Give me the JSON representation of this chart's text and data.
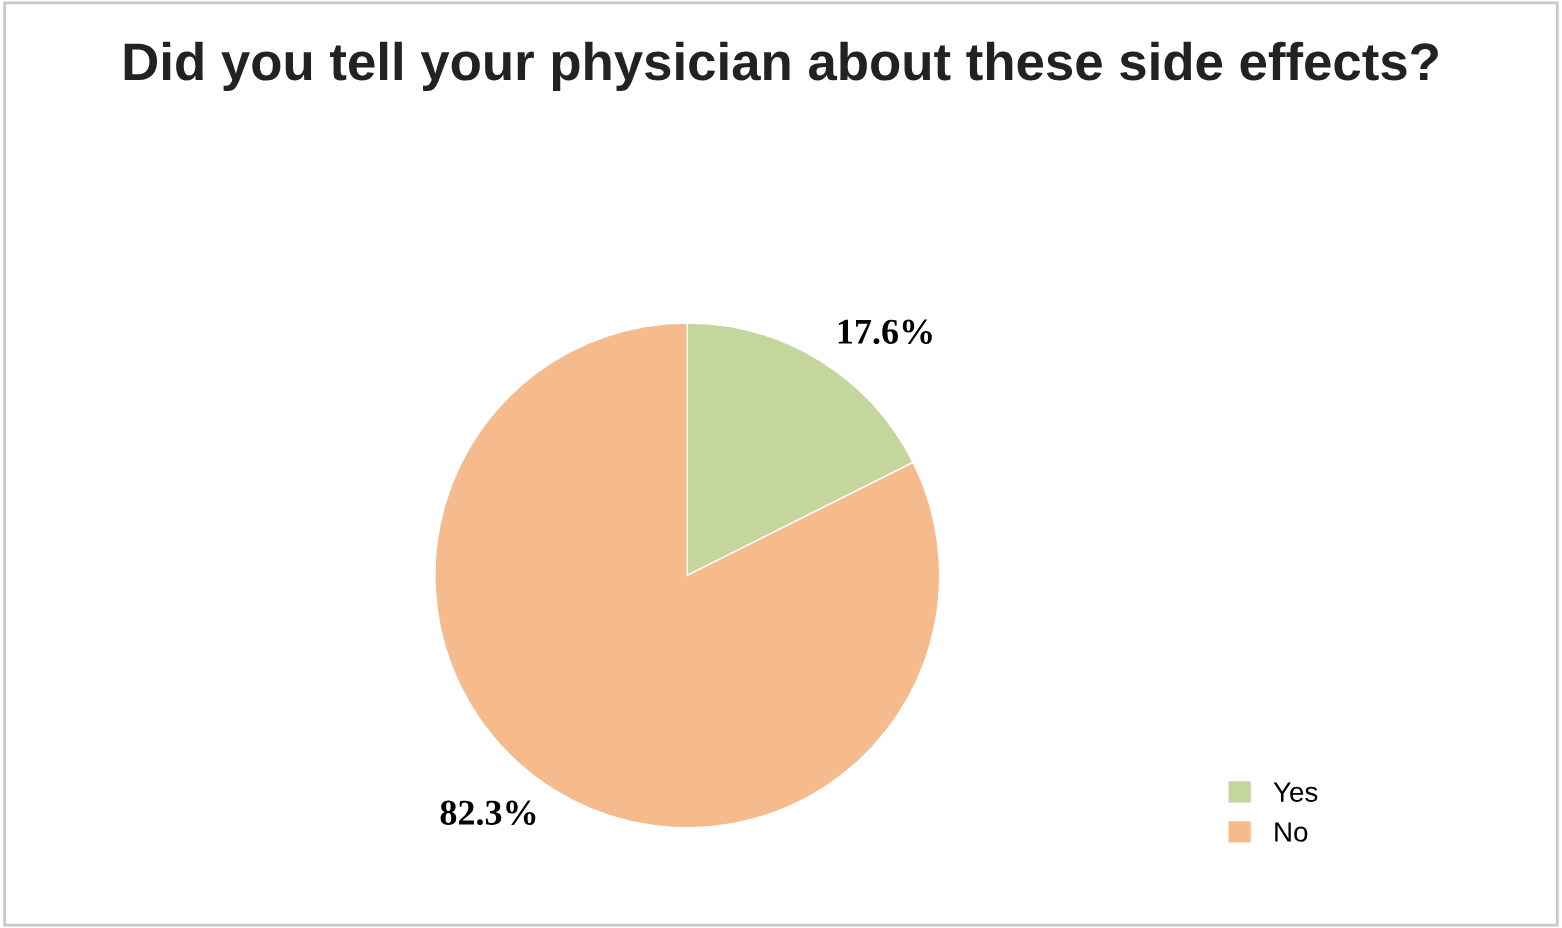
{
  "chart_data": {
    "type": "pie",
    "title": "Did you tell your physician about these side effects?",
    "categories": [
      "Yes",
      "No"
    ],
    "values": [
      17.6,
      82.3
    ],
    "value_labels": [
      "17.6%",
      "82.3%"
    ],
    "colors": [
      "#c3d69b",
      "#f5bb8d"
    ],
    "legend": "bottom right"
  }
}
